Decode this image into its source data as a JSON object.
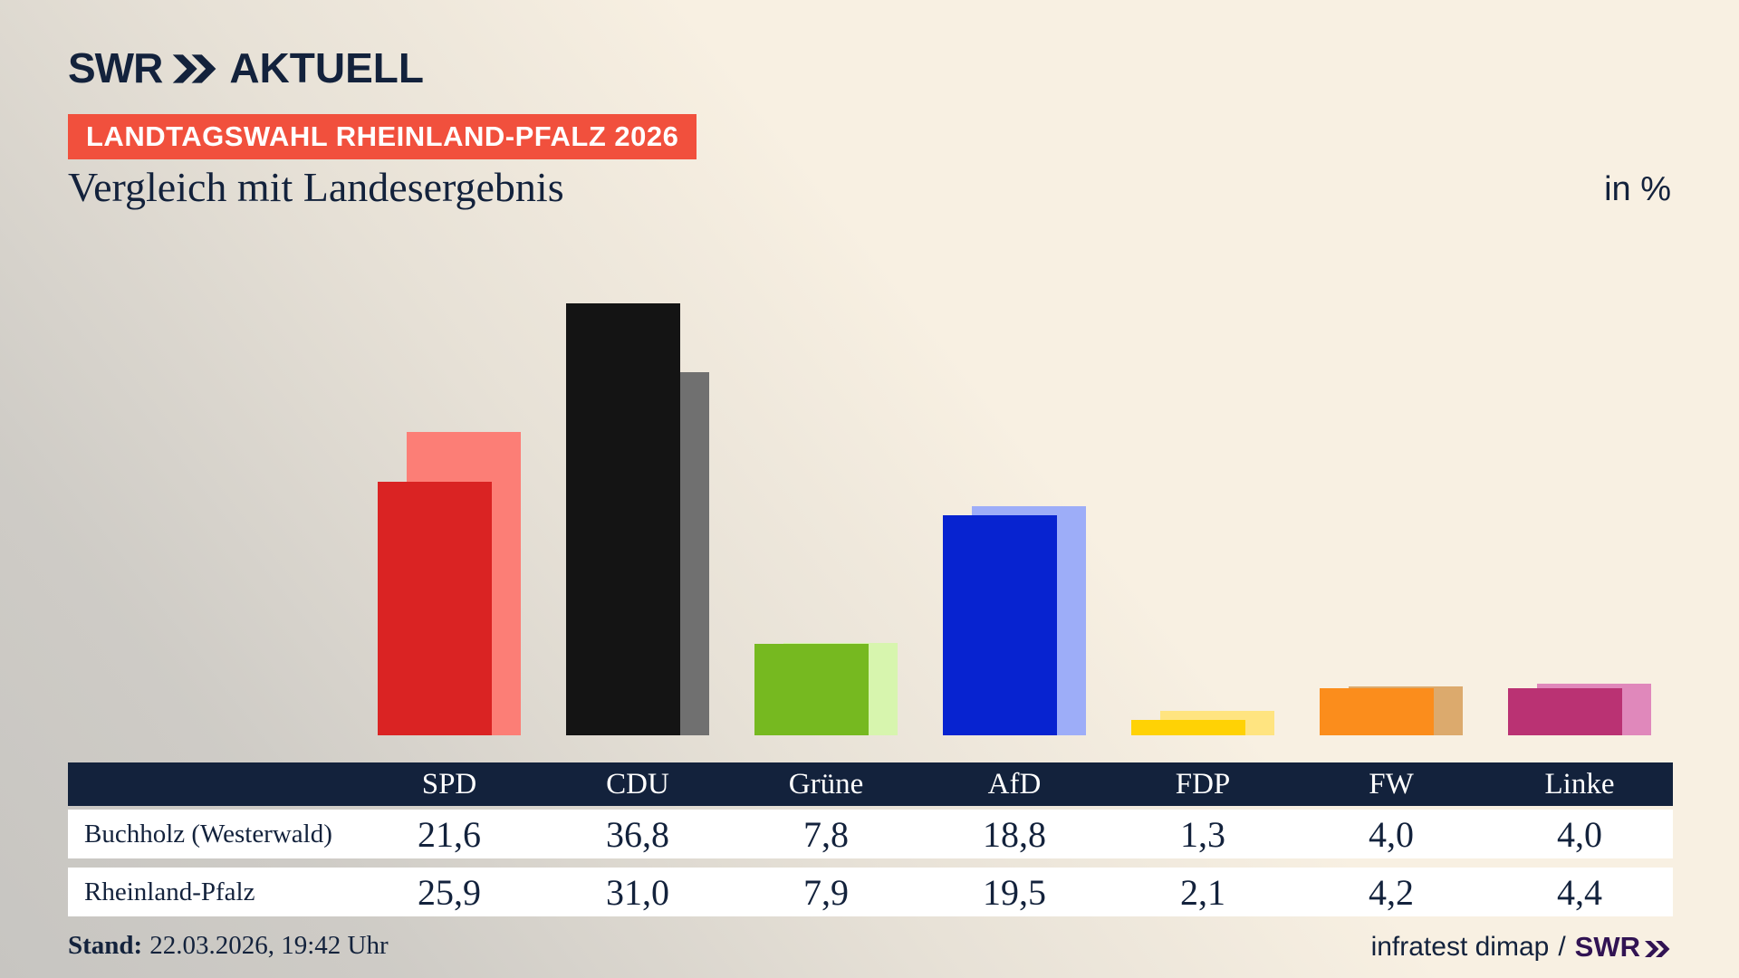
{
  "brand": {
    "name": "SWR",
    "suffix": "AKTUELL"
  },
  "badge": "LANDTAGSWAHL RHEINLAND-PFALZ 2026",
  "title": "Vergleich mit Landesergebnis",
  "unit_label": "in %",
  "colors": {
    "navy": "#13223c",
    "badge_red": "#f1503d",
    "background_beige": "#f8f0e2",
    "background_gray": "#c7c5c1",
    "table_header_bg": "#13223c",
    "source_brand_purple": "#311353",
    "bar_foreground": [
      "#da2323",
      "#141414",
      "#76b920",
      "#0723d0",
      "#ffd205",
      "#fb8d1c",
      "#ba3273"
    ],
    "bar_background": [
      "#fc7e76",
      "#707070",
      "#d7f5ae",
      "#9dadf8",
      "#ffe480",
      "#dcaa6d",
      "#e088bb"
    ]
  },
  "chart_data": {
    "type": "bar",
    "title": "Vergleich mit Landesergebnis",
    "xlabel": "",
    "ylabel": "in %",
    "ylim": [
      0,
      40
    ],
    "grid": false,
    "legend_position": "table-below",
    "categories": [
      "SPD",
      "CDU",
      "Grüne",
      "AfD",
      "FDP",
      "FW",
      "Linke"
    ],
    "series": [
      {
        "name": "Buchholz (Westerwald)",
        "role": "foreground",
        "values": [
          21.6,
          36.8,
          7.8,
          18.8,
          1.3,
          4.0,
          4.0
        ]
      },
      {
        "name": "Rheinland-Pfalz",
        "role": "background",
        "values": [
          25.9,
          31.0,
          7.9,
          19.5,
          2.1,
          4.2,
          4.4
        ]
      }
    ]
  },
  "table": {
    "columns": [
      "SPD",
      "CDU",
      "Grüne",
      "AfD",
      "FDP",
      "FW",
      "Linke"
    ],
    "rows": [
      {
        "label": "Buchholz (Westerwald)",
        "values": [
          "21,6",
          "36,8",
          "7,8",
          "18,8",
          "1,3",
          "4,0",
          "4,0"
        ]
      },
      {
        "label": "Rheinland-Pfalz",
        "values": [
          "25,9",
          "31,0",
          "7,9",
          "19,5",
          "2,1",
          "4,2",
          "4,4"
        ]
      }
    ]
  },
  "footer": {
    "stand_label": "Stand:",
    "stand_value": "22.03.2026, 19:42 Uhr",
    "source": "infratest dimap",
    "separator": "/",
    "source_brand": "SWR"
  }
}
